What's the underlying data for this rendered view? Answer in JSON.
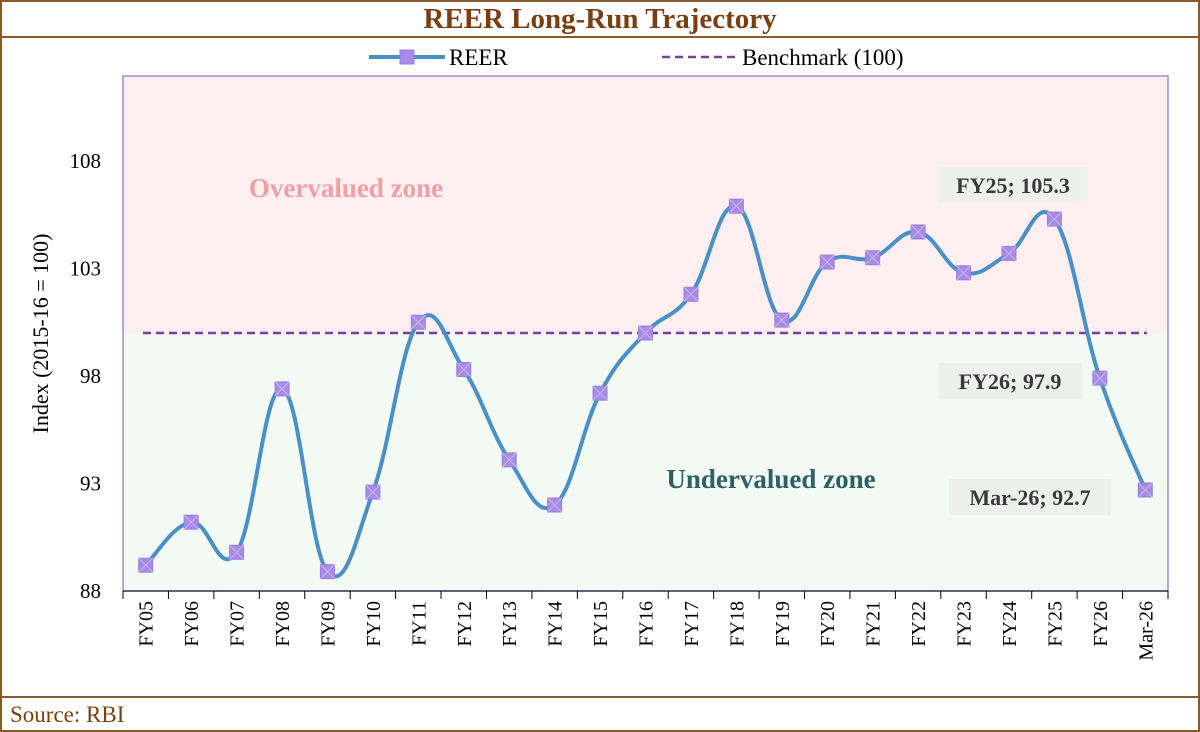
{
  "chart_data": {
    "type": "line",
    "title": "REER Long-Run Trajectory",
    "ylabel": "Index (2015-16 = 100)",
    "xlabel": "",
    "ylim": [
      88,
      112
    ],
    "yticks": [
      88,
      93,
      98,
      103,
      108
    ],
    "categories": [
      "FY05",
      "FY06",
      "FY07",
      "FY08",
      "FY09",
      "FY10",
      "FY11",
      "FY12",
      "FY13",
      "FY14",
      "FY15",
      "FY16",
      "FY17",
      "FY18",
      "FY19",
      "FY20",
      "FY21",
      "FY22",
      "FY23",
      "FY24",
      "FY25",
      "FY26",
      "Mar-26"
    ],
    "series": [
      {
        "name": "REER",
        "color": "#4a90c8",
        "marker_color": "#a78be6",
        "values": [
          89.2,
          91.2,
          89.8,
          97.4,
          88.9,
          92.6,
          100.5,
          98.3,
          94.1,
          92.0,
          97.2,
          100.0,
          101.8,
          105.9,
          100.6,
          103.3,
          103.5,
          104.7,
          102.8,
          103.7,
          105.3,
          97.9,
          92.7
        ]
      }
    ],
    "benchmark": {
      "name": "Benchmark (100)",
      "value": 100,
      "color": "#7b3fa0"
    },
    "zones": [
      {
        "label": "Overvalued zone",
        "color": "#fdeef0",
        "text_color": "#f0a0a5"
      },
      {
        "label": "Undervalued zone",
        "color": "#f3f9f3",
        "text_color": "#2e6068"
      }
    ],
    "annotations": [
      {
        "text": "FY25; 105.3",
        "category": "FY25"
      },
      {
        "text": "FY26; 97.9",
        "category": "FY26"
      },
      {
        "text": "Mar-26; 92.7",
        "category": "Mar-26"
      }
    ],
    "legend": "top",
    "grid": false
  },
  "source": "Source: RBI"
}
